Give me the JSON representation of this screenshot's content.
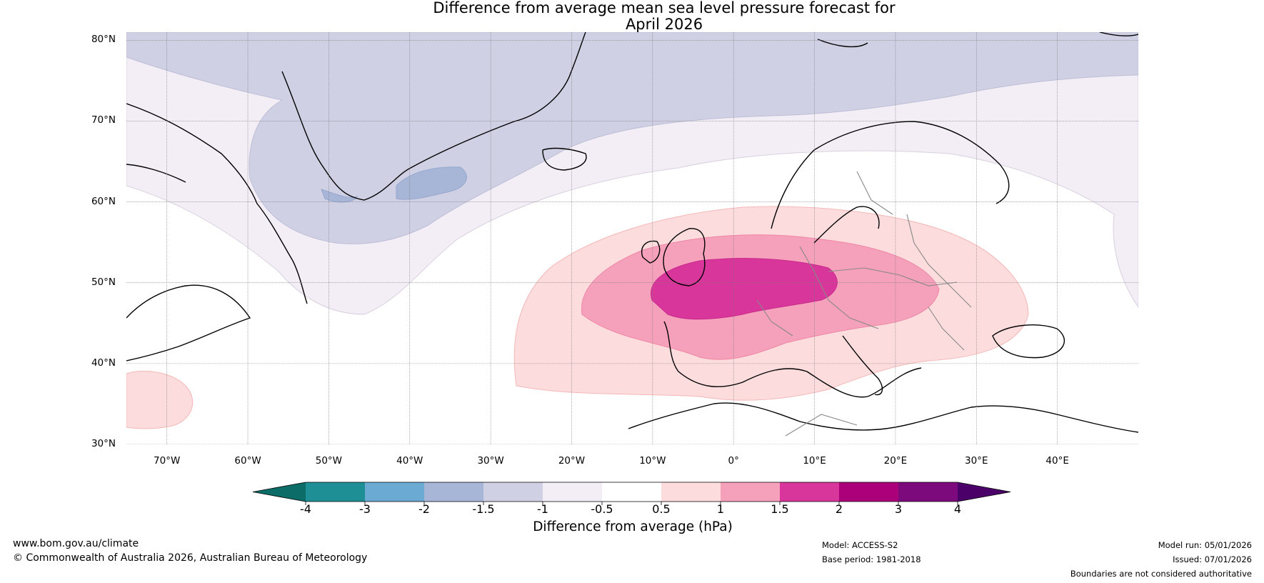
{
  "title": {
    "line1": "Difference from average mean sea level pressure forecast for",
    "line2": "April 2026"
  },
  "map": {
    "lon_range": [
      -75,
      50
    ],
    "lat_range": [
      30,
      81
    ],
    "lat_ticks": [
      {
        "value": 80,
        "label": "80°N"
      },
      {
        "value": 70,
        "label": "70°N"
      },
      {
        "value": 60,
        "label": "60°N"
      },
      {
        "value": 50,
        "label": "50°N"
      },
      {
        "value": 40,
        "label": "40°N"
      },
      {
        "value": 30,
        "label": "30°N"
      }
    ],
    "lon_ticks": [
      {
        "value": -70,
        "label": "70°W"
      },
      {
        "value": -60,
        "label": "60°W"
      },
      {
        "value": -50,
        "label": "50°W"
      },
      {
        "value": -40,
        "label": "40°W"
      },
      {
        "value": -30,
        "label": "30°W"
      },
      {
        "value": -20,
        "label": "20°W"
      },
      {
        "value": -10,
        "label": "10°W"
      },
      {
        "value": 0,
        "label": "0°"
      },
      {
        "value": 10,
        "label": "10°E"
      },
      {
        "value": 20,
        "label": "20°E"
      },
      {
        "value": 30,
        "label": "30°E"
      },
      {
        "value": 40,
        "label": "40°E"
      }
    ]
  },
  "colorbar": {
    "label": "Difference from average (hPa)",
    "bins": [
      {
        "range": "below -4",
        "color": "#0b6c68"
      },
      {
        "range": "-4 to -3",
        "color": "#1f8f96"
      },
      {
        "range": "-3 to -2",
        "color": "#6aaad3"
      },
      {
        "range": "-2 to -1.5",
        "color": "#a7b6d6"
      },
      {
        "range": "-1.5 to -1",
        "color": "#d0d0e5"
      },
      {
        "range": "-1 to -0.5",
        "color": "#f3eef6"
      },
      {
        "range": "-0.5 to 0.5",
        "color": "#ffffff"
      },
      {
        "range": "0.5 to 1",
        "color": "#fcdcdc"
      },
      {
        "range": "1 to 1.5",
        "color": "#f6a1bb"
      },
      {
        "range": "1.5 to 2",
        "color": "#d9369c"
      },
      {
        "range": "2 to 3",
        "color": "#ac007b"
      },
      {
        "range": "3 to 4",
        "color": "#7c0a7c"
      },
      {
        "range": "above 4",
        "color": "#4a0068"
      }
    ],
    "tick_labels": [
      "-4",
      "-3",
      "-2",
      "-1.5",
      "-1",
      "-0.5",
      "0.5",
      "1",
      "1.5",
      "2",
      "3",
      "4"
    ]
  },
  "footer": {
    "website": "www.bom.gov.au/climate",
    "copyright": "© Commonwealth of Australia 2026, Australian Bureau of Meteorology",
    "model": "Model: ACCESS-S2",
    "base_period": "Base period: 1981-2018",
    "model_run": "Model run: 05/01/2026",
    "issued": "Issued: 07/01/2026",
    "disclaimer": "Boundaries are not considered authoritative"
  }
}
